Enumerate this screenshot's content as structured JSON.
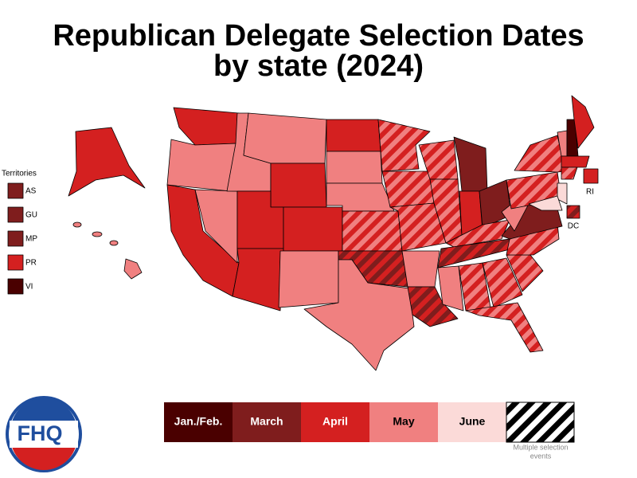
{
  "title": {
    "line1": "Republican Delegate Selection Dates",
    "line2": "by state (2024)"
  },
  "territories": {
    "heading": "Territories",
    "items": [
      "AS",
      "GU",
      "MP",
      "PR",
      "VI"
    ]
  },
  "map_labels": {
    "ri": "RI",
    "dc": "DC"
  },
  "legend": {
    "items": [
      "Jan./Feb.",
      "March",
      "April",
      "May",
      "June"
    ],
    "multiple_line1": "Multiple selection",
    "multiple_line2": "events"
  },
  "logo": "FHQ"
}
